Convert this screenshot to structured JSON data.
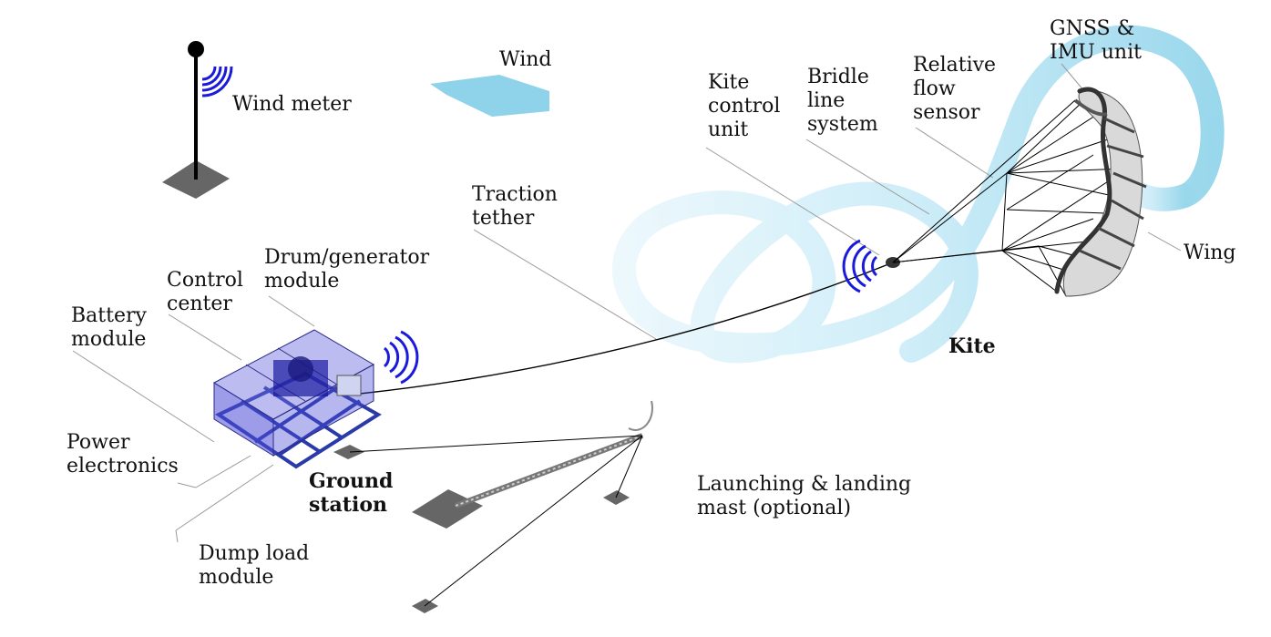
{
  "labels": {
    "wind_meter": "Wind meter",
    "wind": "Wind",
    "kite_control_unit": "Kite\ncontrol\nunit",
    "bridle_line_system": "Bridle\nline\nsystem",
    "relative_flow_sensor": "Relative\nflow\nsensor",
    "gnss_imu_unit": "GNSS &\nIMU unit",
    "wing": "Wing",
    "kite": "Kite",
    "traction_tether": "Traction\ntether",
    "drum_generator_module": "Drum/generator\nmodule",
    "control_center": "Control\ncenter",
    "battery_module": "Battery\nmodule",
    "power_electronics": "Power\nelectronics",
    "ground_station": "Ground\nstation",
    "dump_load_module": "Dump load\nmodule",
    "launching_landing_mast": "Launching & landing\nmast (optional)"
  },
  "colors": {
    "wind_arrow": "#8fd3ea",
    "flight_path": "#a9dcef",
    "signal": "#1a1adb",
    "module_box": "#4b4bd6",
    "frame": "#2a3aa8",
    "ground_pad": "#666666",
    "leader_line": "#9a9a9a"
  }
}
